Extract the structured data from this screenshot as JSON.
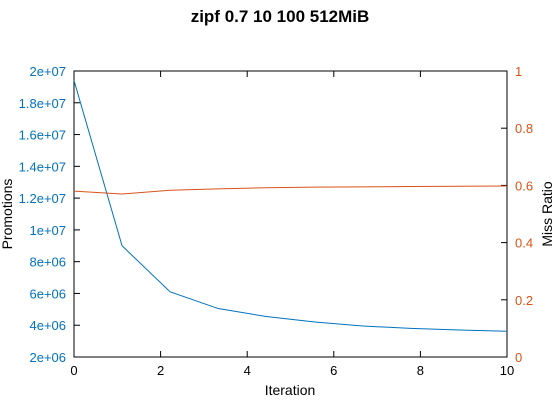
{
  "chart_data": {
    "type": "line",
    "title": "zipf 0.7 10 100 512MiB",
    "xlabel": "Iteration",
    "ylabel_left": "Promotions",
    "ylabel_right": "Miss Ratio",
    "xlim": [
      0,
      10
    ],
    "ylim_left": [
      2000000,
      20000000
    ],
    "ylim_right": [
      0,
      1
    ],
    "x_ticks": [
      "0",
      "2",
      "4",
      "6",
      "8",
      "10"
    ],
    "y_left_ticks": [
      "2e+06",
      "4e+06",
      "6e+06",
      "8e+06",
      "1e+07",
      "1.2e+07",
      "1.4e+07",
      "1.6e+07",
      "1.8e+07",
      "2e+07"
    ],
    "y_right_ticks": [
      "0",
      "0.2",
      "0.4",
      "0.6",
      "0.8",
      "1"
    ],
    "grid": false,
    "legend": "none",
    "series": [
      {
        "axis": "left",
        "color": "#0072bd",
        "x": [
          0,
          1.11,
          2.22,
          3.33,
          4.44,
          5.56,
          6.67,
          7.78,
          8.89,
          10
        ],
        "values": [
          19400000,
          9000000,
          6100000,
          5050000,
          4550000,
          4200000,
          3950000,
          3800000,
          3700000,
          3620000
        ]
      },
      {
        "axis": "right",
        "color": "#d95319",
        "x": [
          0,
          1.11,
          2.22,
          3.33,
          4.44,
          5.56,
          6.67,
          7.78,
          8.89,
          10
        ],
        "values": [
          0.58,
          0.57,
          0.583,
          0.588,
          0.592,
          0.594,
          0.595,
          0.596,
          0.597,
          0.598
        ]
      }
    ],
    "colors": {
      "left_axis": "#0072bd",
      "right_axis": "#d95319"
    }
  }
}
